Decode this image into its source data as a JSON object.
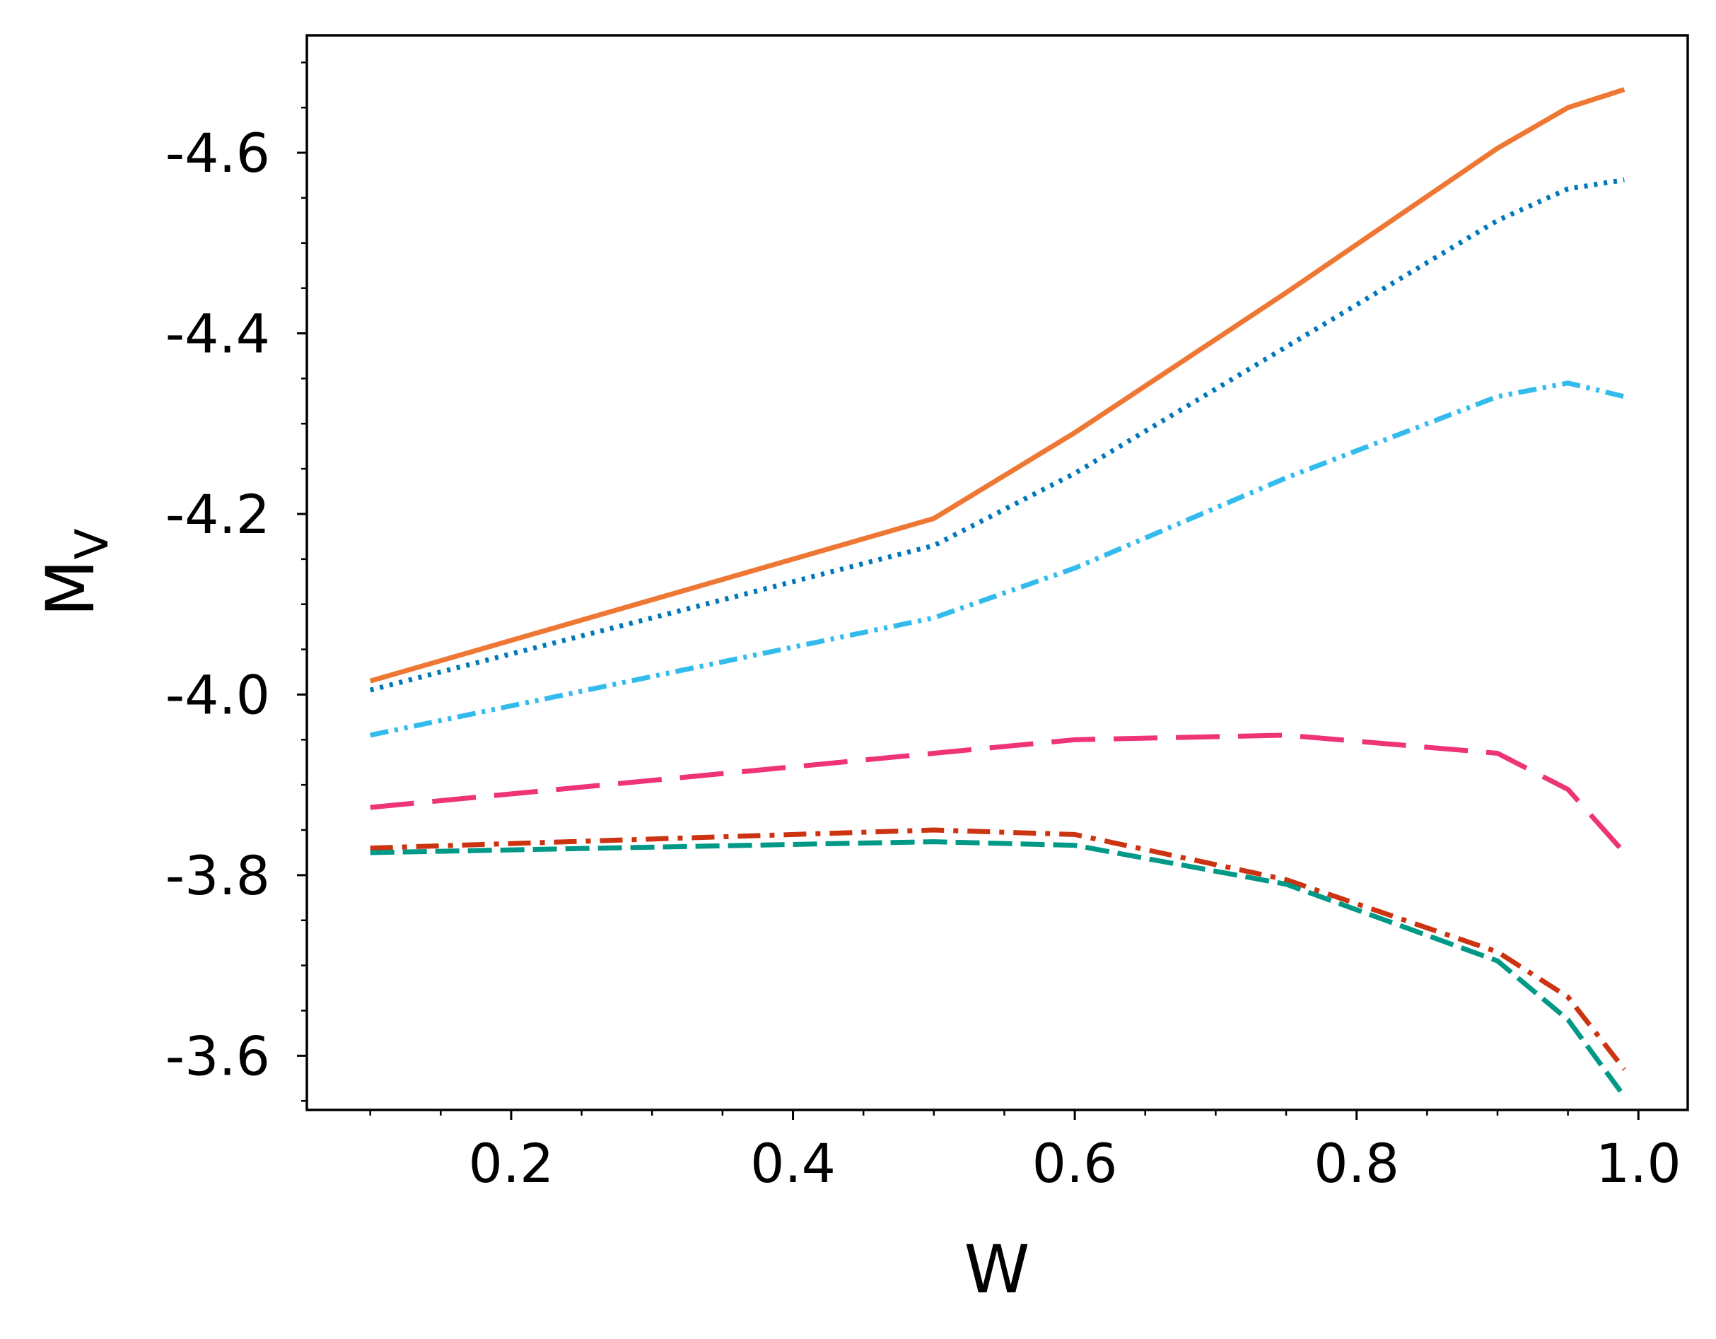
{
  "chart_data": {
    "type": "line",
    "xlabel": "W",
    "ylabel": {
      "main": "M",
      "sub": "V"
    },
    "xlim": [
      0.055,
      1.035
    ],
    "ylim": [
      -3.54,
      -4.73
    ],
    "y_inverted": true,
    "x_major_ticks": [
      0.2,
      0.4,
      0.6,
      0.8,
      1.0
    ],
    "x_tick_labels": [
      "0.2",
      "0.4",
      "0.6",
      "0.8",
      "1.0"
    ],
    "x_minor_ticks": [
      0.1,
      0.15,
      0.25,
      0.3,
      0.35,
      0.45,
      0.5,
      0.55,
      0.65,
      0.7,
      0.75,
      0.85,
      0.9,
      0.95
    ],
    "y_major_ticks": [
      -3.6,
      -3.8,
      -4.0,
      -4.2,
      -4.4,
      -4.6
    ],
    "y_tick_labels": [
      "-3.6",
      "-3.8",
      "-4.0",
      "-4.2",
      "-4.4",
      "-4.6"
    ],
    "y_minor_ticks": [
      -3.55,
      -3.65,
      -3.7,
      -3.75,
      -3.85,
      -3.9,
      -3.95,
      -4.05,
      -4.1,
      -4.15,
      -4.25,
      -4.3,
      -4.35,
      -4.45,
      -4.5,
      -4.55,
      -4.65,
      -4.7
    ],
    "grid": false,
    "legend": "none",
    "series": [
      {
        "color": "#EE7733",
        "dash": "none",
        "x": [
          0.1,
          0.5,
          0.6,
          0.75,
          0.9,
          0.95,
          0.99
        ],
        "y": [
          -4.015,
          -4.195,
          -4.29,
          -4.445,
          -4.605,
          -4.65,
          -4.67
        ]
      },
      {
        "color": "#0077BB",
        "dash": "dotted",
        "x": [
          0.1,
          0.5,
          0.6,
          0.75,
          0.9,
          0.95,
          0.99
        ],
        "y": [
          -4.005,
          -4.165,
          -4.245,
          -4.385,
          -4.525,
          -4.56,
          -4.57
        ]
      },
      {
        "color": "#33BBEE",
        "dash": "dashdotdot",
        "x": [
          0.1,
          0.5,
          0.6,
          0.75,
          0.9,
          0.95,
          0.99
        ],
        "y": [
          -3.955,
          -4.085,
          -4.14,
          -4.24,
          -4.33,
          -4.345,
          -4.33
        ]
      },
      {
        "color": "#EE3377",
        "dash": "longdash",
        "x": [
          0.1,
          0.5,
          0.6,
          0.75,
          0.9,
          0.95,
          0.99
        ],
        "y": [
          -3.875,
          -3.935,
          -3.95,
          -3.955,
          -3.935,
          -3.895,
          -3.825
        ]
      },
      {
        "color": "#CC3311",
        "dash": "dashdot",
        "x": [
          0.1,
          0.5,
          0.6,
          0.75,
          0.9,
          0.95,
          0.99
        ],
        "y": [
          -3.83,
          -3.85,
          -3.845,
          -3.795,
          -3.715,
          -3.665,
          -3.585
        ]
      },
      {
        "color": "#009988",
        "dash": "dashed",
        "x": [
          0.1,
          0.5,
          0.6,
          0.75,
          0.9,
          0.95,
          0.99
        ],
        "y": [
          -3.825,
          -3.837,
          -3.833,
          -3.79,
          -3.705,
          -3.64,
          -3.555
        ]
      }
    ]
  }
}
